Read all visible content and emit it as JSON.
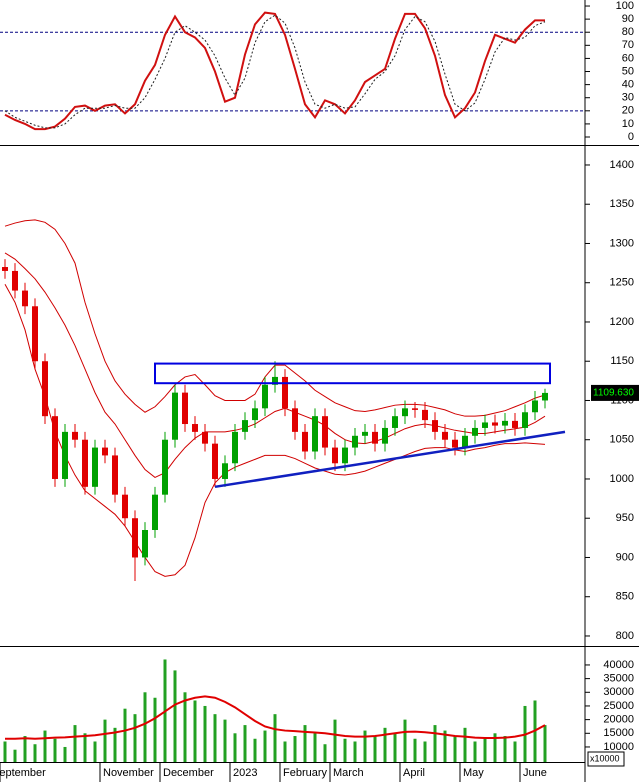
{
  "chart_data": [
    {
      "type": "line",
      "ylim": [
        -6.1,
        104.6
      ],
      "yticks": [
        0,
        10,
        20,
        30,
        40,
        50,
        60,
        70,
        80,
        90,
        100
      ],
      "levels": [
        20,
        80
      ],
      "series": [
        {
          "color": "#d01010",
          "values": [
            17,
            13,
            10,
            6,
            6,
            8,
            14,
            23,
            24,
            20,
            24,
            25,
            18,
            25,
            43,
            55,
            78,
            92,
            80,
            76,
            68,
            50,
            27,
            30,
            63,
            86,
            95,
            94,
            78,
            52,
            25,
            15,
            28,
            25,
            18,
            28,
            42,
            47,
            52,
            75,
            94,
            94,
            83,
            62,
            32,
            15,
            22,
            34,
            58,
            78,
            75,
            72,
            82,
            89,
            89
          ]
        },
        {
          "color": "#202020",
          "dash": true,
          "values": [
            20,
            15,
            12,
            9,
            7,
            7,
            10,
            17,
            22,
            22,
            22,
            24,
            22,
            22,
            30,
            44,
            60,
            80,
            85,
            80,
            74,
            62,
            45,
            32,
            45,
            72,
            88,
            93,
            87,
            68,
            42,
            25,
            22,
            25,
            22,
            23,
            33,
            44,
            50,
            62,
            82,
            92,
            88,
            73,
            48,
            25,
            20,
            26,
            44,
            65,
            76,
            74,
            76,
            85,
            88
          ]
        }
      ]
    },
    {
      "type": "candlestick",
      "ylim": [
        788.5,
        1422.9
      ],
      "yticks": [
        800,
        850,
        900,
        950,
        1000,
        1050,
        1100,
        1150,
        1200,
        1250,
        1300,
        1350,
        1400
      ],
      "up_color": "#00a000",
      "down_color": "#e00000",
      "open": [
        1270,
        1265,
        1240,
        1220,
        1150,
        1080,
        1000,
        1060,
        1050,
        990,
        1040,
        1030,
        980,
        950,
        900,
        935,
        980,
        1050,
        1110,
        1070,
        1060,
        1045,
        1000,
        1020,
        1060,
        1075,
        1090,
        1120,
        1130,
        1090,
        1060,
        1035,
        1080,
        1040,
        1020,
        1040,
        1055,
        1060,
        1045,
        1065,
        1080,
        1090,
        1088,
        1075,
        1060,
        1050,
        1040,
        1055,
        1065,
        1072,
        1068,
        1074,
        1065,
        1085,
        1100
      ],
      "high": [
        1280,
        1275,
        1250,
        1230,
        1160,
        1090,
        1070,
        1070,
        1060,
        1050,
        1050,
        1040,
        990,
        960,
        945,
        990,
        1060,
        1120,
        1120,
        1080,
        1070,
        1055,
        1030,
        1070,
        1085,
        1100,
        1130,
        1150,
        1140,
        1100,
        1070,
        1090,
        1090,
        1050,
        1050,
        1065,
        1070,
        1070,
        1075,
        1090,
        1100,
        1098,
        1098,
        1085,
        1070,
        1060,
        1065,
        1075,
        1082,
        1082,
        1084,
        1084,
        1095,
        1112,
        1115
      ],
      "low": [
        1255,
        1230,
        1210,
        1140,
        1070,
        990,
        990,
        1040,
        980,
        980,
        1020,
        970,
        940,
        870,
        890,
        925,
        970,
        1040,
        1060,
        1050,
        1035,
        990,
        990,
        1010,
        1050,
        1065,
        1080,
        1110,
        1080,
        1050,
        1025,
        1025,
        1030,
        1010,
        1010,
        1030,
        1045,
        1035,
        1035,
        1055,
        1070,
        1078,
        1065,
        1050,
        1040,
        1030,
        1030,
        1045,
        1055,
        1058,
        1058,
        1055,
        1055,
        1075,
        1090
      ],
      "close": [
        1265,
        1240,
        1220,
        1150,
        1080,
        1000,
        1060,
        1050,
        990,
        1040,
        1030,
        980,
        950,
        900,
        935,
        980,
        1050,
        1110,
        1070,
        1060,
        1045,
        1000,
        1020,
        1060,
        1075,
        1090,
        1120,
        1130,
        1090,
        1060,
        1035,
        1080,
        1040,
        1020,
        1040,
        1055,
        1060,
        1045,
        1065,
        1080,
        1090,
        1088,
        1075,
        1060,
        1050,
        1040,
        1055,
        1065,
        1072,
        1068,
        1074,
        1065,
        1085,
        1100,
        1109.63
      ],
      "series": [
        {
          "color": "#d00000",
          "values": [
            1322,
            1326,
            1329,
            1330,
            1327,
            1318,
            1300,
            1275,
            1225,
            1185,
            1150,
            1125,
            1108,
            1095,
            1085,
            1092,
            1105,
            1120,
            1130,
            1133,
            1120,
            1106,
            1100,
            1100,
            1100,
            1108,
            1130,
            1145,
            1145,
            1135,
            1125,
            1113,
            1105,
            1097,
            1092,
            1087,
            1086,
            1088,
            1091,
            1094,
            1095,
            1095,
            1094,
            1091,
            1088,
            1083,
            1080,
            1080,
            1081,
            1084,
            1087,
            1092,
            1097,
            1103,
            1107
          ]
        },
        {
          "color": "#d00000",
          "values": [
            1288,
            1280,
            1268,
            1255,
            1238,
            1218,
            1196,
            1170,
            1140,
            1110,
            1085,
            1070,
            1050,
            1030,
            1012,
            1002,
            1008,
            1025,
            1040,
            1052,
            1060,
            1060,
            1060,
            1062,
            1065,
            1070,
            1078,
            1086,
            1090,
            1085,
            1080,
            1075,
            1068,
            1058,
            1050,
            1046,
            1045,
            1048,
            1052,
            1058,
            1064,
            1068,
            1070,
            1068,
            1065,
            1062,
            1060,
            1058,
            1058,
            1060,
            1062,
            1064,
            1066,
            1072,
            1080
          ]
        },
        {
          "color": "#d00000",
          "values": [
            1248,
            1225,
            1190,
            1140,
            1105,
            1060,
            1030,
            1005,
            985,
            975,
            965,
            955,
            940,
            920,
            900,
            882,
            876,
            878,
            890,
            925,
            970,
            995,
            1008,
            1015,
            1020,
            1025,
            1030,
            1030,
            1030,
            1026,
            1020,
            1014,
            1010,
            1006,
            1005,
            1007,
            1010,
            1015,
            1020,
            1025,
            1030,
            1035,
            1039,
            1040,
            1040,
            1037,
            1035,
            1038,
            1040,
            1043,
            1045,
            1045,
            1046,
            1045,
            1044
          ]
        }
      ],
      "zone": {
        "start": 15,
        "end": 54.5,
        "lower": 1122,
        "upper": 1147,
        "color": "#0000e0"
      },
      "trendline": {
        "x": [
          21,
          56
        ],
        "y": [
          990,
          1060
        ],
        "color": "#1020c0"
      },
      "last_price": {
        "value": 1109.63,
        "label": "1109.630"
      }
    },
    {
      "type": "bar",
      "ylim": [
        4500,
        46200
      ],
      "yticks": [
        10000,
        15000,
        20000,
        25000,
        30000,
        35000,
        40000
      ],
      "color": "#22a022",
      "unit_label": "x10000",
      "categories": [
        "September",
        null,
        null,
        null,
        null,
        null,
        null,
        null,
        null,
        null,
        "November",
        null,
        null,
        null,
        null,
        null,
        "December",
        null,
        null,
        null,
        null,
        null,
        null,
        "2023",
        null,
        null,
        null,
        null,
        "February",
        null,
        null,
        null,
        null,
        "March",
        null,
        null,
        null,
        null,
        null,
        null,
        "April",
        null,
        null,
        null,
        null,
        null,
        "May",
        null,
        null,
        null,
        null,
        null,
        "June",
        null,
        null
      ],
      "values": [
        12000,
        9000,
        14000,
        11000,
        16000,
        13000,
        10000,
        18000,
        15000,
        12000,
        20000,
        17000,
        24000,
        22000,
        30000,
        28000,
        42000,
        38000,
        30000,
        27000,
        25000,
        22000,
        20000,
        15000,
        18000,
        13000,
        16000,
        22000,
        12000,
        14000,
        18000,
        15000,
        11000,
        20000,
        13000,
        12000,
        16000,
        14000,
        17000,
        15000,
        20000,
        13000,
        12000,
        18000,
        16000,
        14000,
        17000,
        12000,
        13000,
        15000,
        14000,
        12000,
        25000,
        27000,
        18000
      ],
      "series": [
        {
          "color": "#e00000",
          "values": [
            13000,
            13000,
            13200,
            13000,
            13200,
            13400,
            13500,
            13800,
            14000,
            14300,
            14800,
            15300,
            16000,
            17000,
            18500,
            20500,
            23000,
            25500,
            27000,
            28000,
            28500,
            28000,
            26500,
            24500,
            22000,
            19500,
            17500,
            16500,
            16000,
            15800,
            15500,
            15300,
            15000,
            14500,
            14000,
            13800,
            13800,
            14000,
            14500,
            15000,
            15500,
            15600,
            15400,
            15000,
            14500,
            14000,
            13800,
            13400,
            13300,
            13300,
            13400,
            13800,
            14500,
            16000,
            18000
          ]
        }
      ]
    }
  ]
}
